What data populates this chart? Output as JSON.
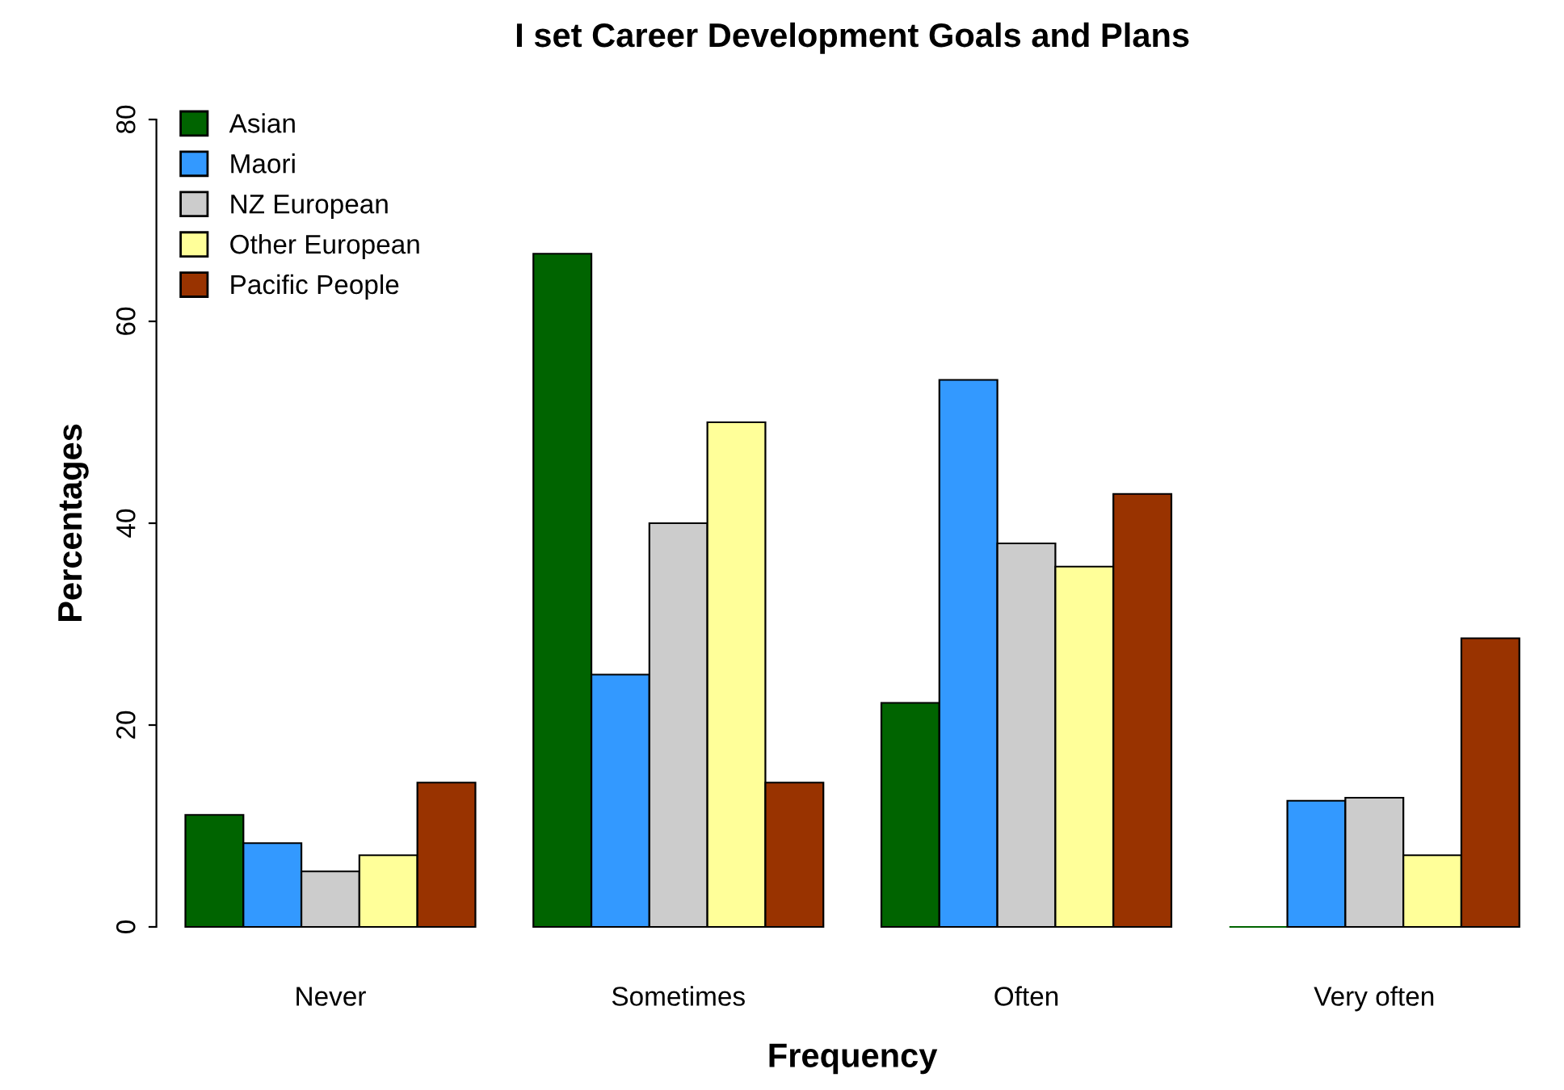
{
  "chart_data": {
    "type": "bar",
    "title": "I set Career Development Goals and Plans",
    "xlabel": "Frequency",
    "ylabel": "Percentages",
    "categories": [
      "Never",
      "Sometimes",
      "Often",
      "Very often"
    ],
    "series": [
      {
        "name": "Asian",
        "color": "#006400",
        "values": [
          11.1,
          66.7,
          22.2,
          0
        ]
      },
      {
        "name": "Maori",
        "color": "#3399ff",
        "values": [
          8.3,
          25.0,
          54.2,
          12.5
        ]
      },
      {
        "name": "NZ European",
        "color": "#cccccc",
        "values": [
          5.5,
          40.0,
          38.0,
          12.8
        ]
      },
      {
        "name": "Other European",
        "color": "#ffff99",
        "values": [
          7.1,
          50.0,
          35.7,
          7.1
        ]
      },
      {
        "name": "Pacific People",
        "color": "#993300",
        "values": [
          14.3,
          14.3,
          42.9,
          28.6
        ]
      }
    ],
    "ylim": [
      0,
      80
    ],
    "yticks": [
      0,
      20,
      40,
      60,
      80
    ],
    "grid": false,
    "legend": "top left"
  }
}
